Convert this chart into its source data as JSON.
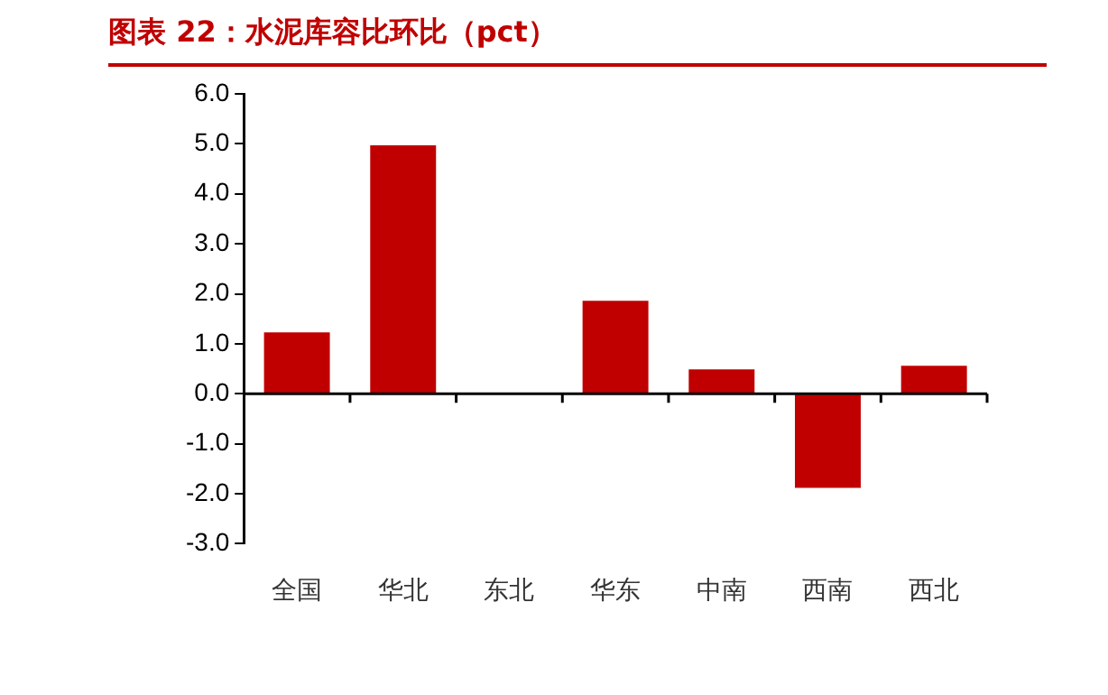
{
  "chart_data": {
    "type": "bar",
    "title": "图表 22：水泥库容比环比（pct）",
    "categories": [
      "全国",
      "华北",
      "东北",
      "华东",
      "中南",
      "西南",
      "西北"
    ],
    "values": [
      1.23,
      4.97,
      0,
      1.86,
      0.49,
      -1.88,
      0.56
    ],
    "color": "#c00000",
    "ylim": [
      -3,
      6
    ],
    "yticks": [
      {
        "value": -3,
        "label": "-3.0"
      },
      {
        "value": -2,
        "label": "-2.0"
      },
      {
        "value": -1,
        "label": "-1.0"
      },
      {
        "value": 0,
        "label": "0.0"
      },
      {
        "value": 1,
        "label": "1.0"
      },
      {
        "value": 2,
        "label": "2.0"
      },
      {
        "value": 3,
        "label": "3.0"
      },
      {
        "value": 4,
        "label": "4.0"
      },
      {
        "value": 5,
        "label": "5.0"
      },
      {
        "value": 6,
        "label": "6.0"
      }
    ],
    "legend": false
  }
}
